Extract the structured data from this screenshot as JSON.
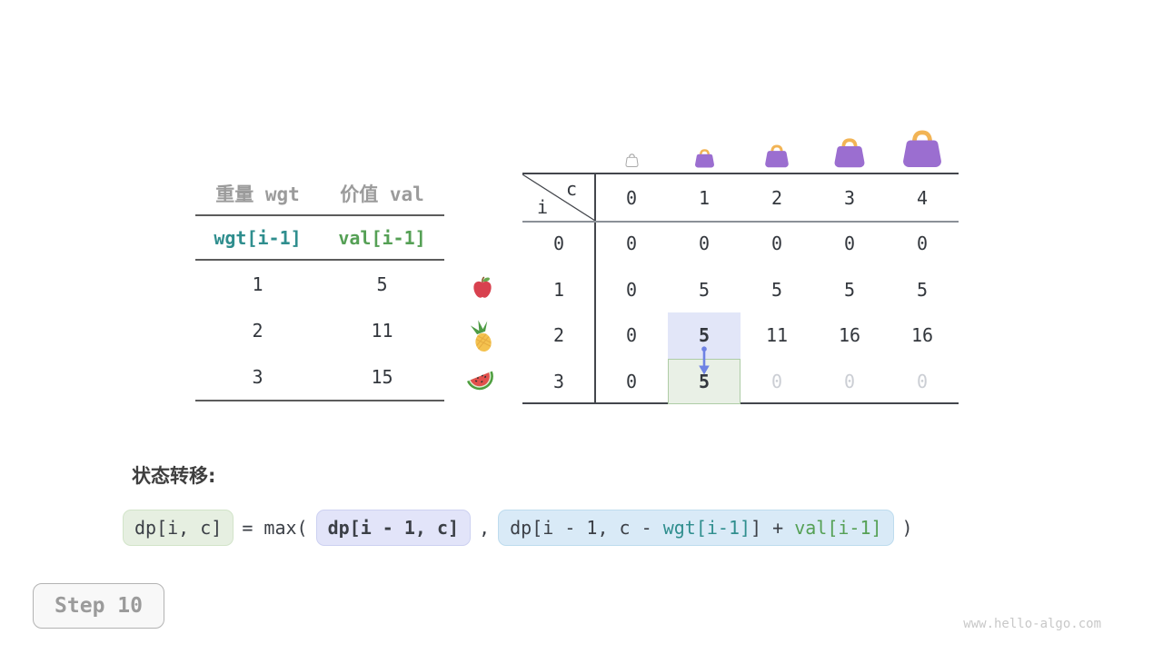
{
  "page": {
    "step_label": "Step 10",
    "watermark": "www.hello-algo.com"
  },
  "item_table": {
    "col_headers": [
      "重量 wgt",
      "价值 val"
    ],
    "formula_row": {
      "wgt": "wgt[i-1]",
      "val": "val[i-1]"
    },
    "rows": [
      {
        "wgt": "1",
        "val": "5",
        "icon": "apple-icon"
      },
      {
        "wgt": "2",
        "val": "11",
        "icon": "pineapple-icon"
      },
      {
        "wgt": "3",
        "val": "15",
        "icon": "watermelon-icon"
      }
    ]
  },
  "dp_table": {
    "corner": {
      "top_label": "c",
      "side_label": "i"
    },
    "col_headers": [
      "0",
      "1",
      "2",
      "3",
      "4"
    ],
    "bag_icons": [
      "empty-bag-icon",
      "bag-icon-1",
      "bag-icon-2",
      "bag-icon-3",
      "bag-icon-4"
    ],
    "rows": [
      {
        "header": "0",
        "cells": [
          "0",
          "0",
          "0",
          "0",
          "0"
        ]
      },
      {
        "header": "1",
        "cells": [
          "0",
          "5",
          "5",
          "5",
          "5"
        ]
      },
      {
        "header": "2",
        "cells": [
          "0",
          "5",
          "11",
          "16",
          "16"
        ]
      },
      {
        "header": "3",
        "cells": [
          "0",
          "5",
          "0",
          "0",
          "0"
        ]
      }
    ],
    "source_cell": {
      "row": 2,
      "col": 1,
      "bg": "#e2e6f8"
    },
    "target_cell": {
      "row": 3,
      "col": 1,
      "bg": "#e9f0e6",
      "border": "#aecda6"
    },
    "pending_cells": [
      [
        3,
        2
      ],
      [
        3,
        3
      ],
      [
        3,
        4
      ]
    ],
    "arrow_color": "#6e82e4"
  },
  "formula": {
    "label": "状态转移:",
    "lhs": "dp[i, c]",
    "op": "= max(",
    "arg1": "dp[i - 1, c]",
    "separator": ",",
    "arg2_pre": "dp[i - 1, c - ",
    "arg2_wgt": "wgt[i-1]",
    "arg2_mid": "] + ",
    "arg2_val": "val[i-1]",
    "close": ")"
  },
  "colors": {
    "teal": "#2f8e8e",
    "green": "#55a055",
    "text_dark": "#33373d",
    "header_gray": "#9b9b9b",
    "pending_gray": "#cbced4",
    "lhs_box_bg": "#e6efe1",
    "lhs_box_border": "#d2e4c9",
    "arg1_box_bg": "#e2e4f9",
    "arg1_box_border": "#cdd1f1",
    "arg2_box_bg": "#d9eaf7",
    "arg2_box_border": "#bedcee",
    "bag_purple": "#9b6ed0",
    "bag_handle": "#f2b455"
  }
}
